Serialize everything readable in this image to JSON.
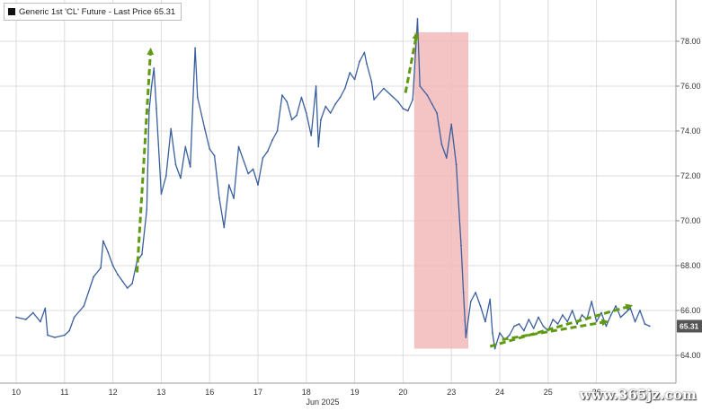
{
  "chart_data": {
    "type": "line",
    "title": "",
    "xlabel": "",
    "ylabel": "",
    "legend": {
      "entry": "Generic 1st 'CL' Future - Last Price 65.31",
      "placement": "top-left"
    },
    "last_price_label": "65.31",
    "month_label": "Jun 2025",
    "ylim": [
      63.2,
      78.8
    ],
    "y_ticks": [
      "64.00",
      "66.00",
      "68.00",
      "70.00",
      "72.00",
      "74.00",
      "76.00",
      "78.00"
    ],
    "x_ticks": [
      "10",
      "11",
      "12",
      "13",
      "16",
      "17",
      "18",
      "19",
      "20",
      "23",
      "24",
      "25",
      "26"
    ],
    "grid": true,
    "series": [
      {
        "values": [
          [
            0.0,
            65.7
          ],
          [
            0.2,
            65.6
          ],
          [
            0.35,
            65.9
          ],
          [
            0.5,
            65.5
          ],
          [
            0.6,
            66.1
          ],
          [
            0.65,
            64.9
          ],
          [
            0.8,
            64.8
          ],
          [
            1.0,
            64.9
          ],
          [
            1.1,
            65.1
          ],
          [
            1.2,
            65.7
          ],
          [
            1.4,
            66.2
          ],
          [
            1.6,
            67.5
          ],
          [
            1.75,
            67.9
          ],
          [
            1.8,
            69.1
          ],
          [
            1.9,
            68.6
          ],
          [
            2.0,
            68.0
          ],
          [
            2.1,
            67.6
          ],
          [
            2.2,
            67.3
          ],
          [
            2.3,
            67.0
          ],
          [
            2.4,
            67.2
          ],
          [
            2.5,
            68.2
          ],
          [
            2.6,
            68.5
          ],
          [
            2.7,
            70.5
          ],
          [
            2.75,
            74.9
          ],
          [
            2.8,
            76.0
          ],
          [
            2.85,
            76.8
          ],
          [
            2.9,
            75.0
          ],
          [
            3.0,
            71.2
          ],
          [
            3.1,
            72.0
          ],
          [
            3.2,
            74.1
          ],
          [
            3.3,
            72.5
          ],
          [
            3.4,
            71.9
          ],
          [
            3.5,
            73.3
          ],
          [
            3.6,
            72.4
          ],
          [
            3.7,
            77.7
          ],
          [
            3.75,
            75.5
          ],
          [
            3.9,
            74.1
          ],
          [
            4.0,
            73.2
          ],
          [
            4.1,
            72.9
          ],
          [
            4.2,
            71.0
          ],
          [
            4.3,
            69.7
          ],
          [
            4.4,
            71.6
          ],
          [
            4.5,
            71.0
          ],
          [
            4.6,
            73.3
          ],
          [
            4.8,
            72.1
          ],
          [
            4.9,
            72.3
          ],
          [
            5.0,
            71.6
          ],
          [
            5.1,
            72.8
          ],
          [
            5.2,
            73.1
          ],
          [
            5.3,
            73.6
          ],
          [
            5.4,
            74.0
          ],
          [
            5.5,
            75.6
          ],
          [
            5.6,
            75.3
          ],
          [
            5.7,
            74.5
          ],
          [
            5.8,
            74.7
          ],
          [
            5.9,
            75.5
          ],
          [
            6.0,
            74.8
          ],
          [
            6.1,
            73.8
          ],
          [
            6.2,
            76.0
          ],
          [
            6.25,
            73.3
          ],
          [
            6.3,
            74.5
          ],
          [
            6.4,
            75.1
          ],
          [
            6.5,
            74.8
          ],
          [
            6.6,
            75.2
          ],
          [
            6.7,
            75.5
          ],
          [
            6.8,
            75.9
          ],
          [
            6.9,
            76.6
          ],
          [
            7.0,
            76.3
          ],
          [
            7.1,
            77.1
          ],
          [
            7.2,
            77.5
          ],
          [
            7.25,
            77.0
          ],
          [
            7.35,
            76.2
          ],
          [
            7.4,
            75.4
          ],
          [
            7.6,
            75.9
          ],
          [
            7.9,
            75.3
          ],
          [
            8.0,
            75.0
          ],
          [
            8.1,
            74.9
          ],
          [
            8.2,
            75.4
          ],
          [
            8.3,
            79.0
          ],
          [
            8.35,
            76.0
          ],
          [
            8.5,
            75.6
          ],
          [
            8.6,
            75.2
          ],
          [
            8.7,
            74.8
          ],
          [
            8.8,
            73.4
          ],
          [
            8.9,
            72.8
          ],
          [
            9.0,
            74.3
          ],
          [
            9.1,
            72.5
          ],
          [
            9.2,
            68.9
          ],
          [
            9.25,
            66.8
          ],
          [
            9.3,
            64.8
          ],
          [
            9.4,
            66.4
          ],
          [
            9.5,
            66.8
          ],
          [
            9.6,
            66.2
          ],
          [
            9.7,
            65.5
          ],
          [
            9.8,
            66.5
          ],
          [
            9.85,
            65.0
          ],
          [
            9.9,
            64.3
          ],
          [
            10.0,
            65.0
          ],
          [
            10.1,
            64.7
          ],
          [
            10.2,
            64.9
          ],
          [
            10.3,
            65.3
          ],
          [
            10.4,
            65.4
          ],
          [
            10.5,
            65.1
          ],
          [
            10.6,
            65.6
          ],
          [
            10.7,
            65.2
          ],
          [
            10.8,
            65.7
          ],
          [
            10.9,
            65.3
          ],
          [
            11.0,
            65.1
          ],
          [
            11.1,
            65.6
          ],
          [
            11.2,
            65.4
          ],
          [
            11.3,
            65.8
          ],
          [
            11.4,
            65.5
          ],
          [
            11.5,
            66.0
          ],
          [
            11.6,
            65.4
          ],
          [
            11.7,
            65.8
          ],
          [
            11.8,
            65.6
          ],
          [
            11.9,
            66.4
          ],
          [
            12.0,
            65.5
          ],
          [
            12.1,
            65.9
          ],
          [
            12.2,
            65.3
          ],
          [
            12.3,
            65.8
          ],
          [
            12.4,
            66.2
          ],
          [
            12.5,
            65.7
          ],
          [
            12.6,
            65.9
          ],
          [
            12.7,
            66.1
          ],
          [
            12.8,
            65.5
          ],
          [
            12.9,
            66.0
          ],
          [
            13.0,
            65.4
          ],
          [
            13.1,
            65.3
          ]
        ]
      }
    ],
    "highlight_region": {
      "x": [
        8.23,
        9.35
      ],
      "y": [
        64.3,
        78.4
      ]
    },
    "annotations": [
      {
        "type": "arrow",
        "from": [
          2.5,
          67.7
        ],
        "to": [
          2.78,
          77.6
        ]
      },
      {
        "type": "arrow",
        "from": [
          8.05,
          75.7
        ],
        "to": [
          8.28,
          78.3
        ]
      },
      {
        "type": "arrow",
        "from": [
          9.8,
          64.4
        ],
        "to": [
          12.7,
          66.2
        ]
      },
      {
        "type": "arrow",
        "from": [
          10.05,
          64.7
        ],
        "to": [
          12.2,
          65.5
        ]
      }
    ],
    "watermark": "www.365jz.com",
    "colors": {
      "line": "#3a5f9e",
      "highlight": "#f2b8b8",
      "arrow": "#5f9a12",
      "grid": "#dcdcdc",
      "last_price_bg": "#555555"
    }
  }
}
